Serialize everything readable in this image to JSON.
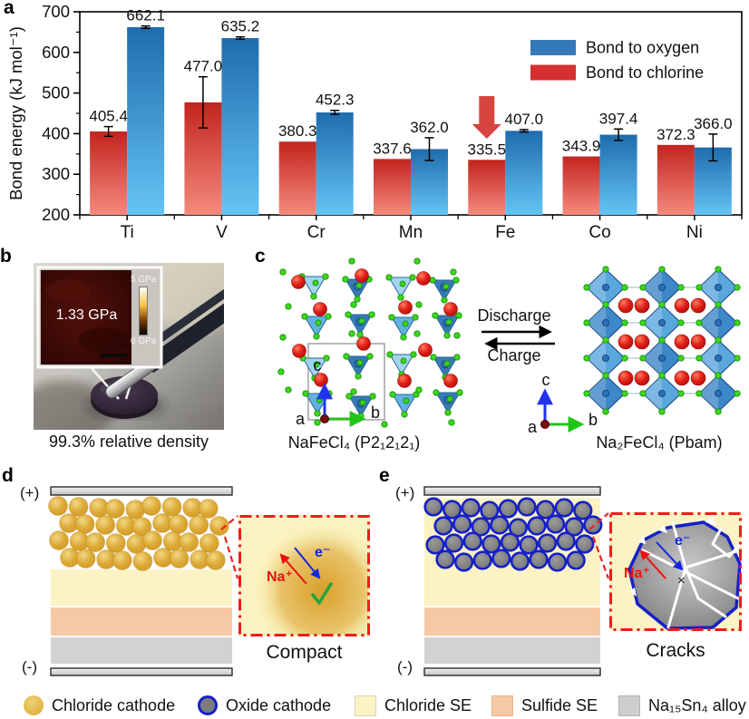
{
  "figure": {
    "panel_labels": {
      "a": "a",
      "b": "b",
      "c": "c",
      "d": "d",
      "e": "e"
    }
  },
  "chart_data": {
    "type": "bar",
    "title": "",
    "categories": [
      "Ti",
      "V",
      "Cr",
      "Mn",
      "Fe",
      "Co",
      "Ni"
    ],
    "series": [
      {
        "name": "Bond to chlorine",
        "values": [
          405.4,
          477.0,
          380.3,
          337.6,
          335.5,
          343.9,
          372.3
        ],
        "errors": [
          12,
          63,
          0,
          0,
          0,
          0,
          0
        ],
        "bar_top": "#c2241e",
        "bar_bottom": "#f58a7d",
        "legend_color": "#d62f2f"
      },
      {
        "name": "Bond to oxygen",
        "values": [
          662.1,
          635.2,
          452.3,
          362.0,
          407.0,
          397.4,
          366.0
        ],
        "errors": [
          3,
          3,
          5,
          28,
          3,
          14,
          33
        ],
        "bar_top": "#1f6cad",
        "bar_bottom": "#64c4f4",
        "legend_color": "#3579b8"
      }
    ],
    "legend": [
      {
        "label": "Bond to oxygen",
        "color": "#3579b8"
      },
      {
        "label": "Bond to chlorine",
        "color": "#d62f2f"
      }
    ],
    "xlabel": "",
    "ylabel": "Bond energy (kJ mol⁻¹)",
    "ylim": [
      200,
      700
    ],
    "yticks": [
      200,
      300,
      400,
      500,
      600,
      700
    ],
    "grid": false,
    "legend_position": "upper right",
    "annotation": {
      "shape": "down-arrow",
      "category": "Fe",
      "series": "Bond to chlorine",
      "color": "#d6453f"
    }
  },
  "panel_b": {
    "inset_value": "1.33 GPa",
    "scale_max": "5 GPa",
    "scale_min": "0 GPa",
    "caption": "99.3% relative density"
  },
  "panel_c": {
    "discharge": "Discharge",
    "charge": "Charge",
    "left_formula": "NaFeCl₄ (P2₁2₁2₁)",
    "right_formula": "Na₂FeCl₄ (Pbam)",
    "axes": {
      "a": "a",
      "b": "b",
      "c": "c"
    }
  },
  "panel_d": {
    "plus": "(+)",
    "minus": "(-)",
    "na_ion": "Na⁺",
    "electron": "e⁻",
    "caption": "Compact"
  },
  "panel_e": {
    "plus": "(+)",
    "minus": "(-)",
    "na_ion": "Na⁺",
    "electron": "e⁻",
    "cross": "×",
    "caption": "Cracks"
  },
  "legend": {
    "items": [
      {
        "icon": "chloride-cathode-icon",
        "label": "Chloride cathode"
      },
      {
        "icon": "oxide-cathode-icon",
        "label": "Oxide cathode"
      },
      {
        "icon": "chloride-se-icon",
        "label": "Chloride SE"
      },
      {
        "icon": "sulfide-se-icon",
        "label": "Sulfide SE"
      },
      {
        "icon": "na15sn4-alloy-icon",
        "label": "Na₁₅Sn₄ alloy"
      }
    ]
  },
  "colors": {
    "chloride_se": "#fbf3c3",
    "sulfide_se": "#f6c9a4",
    "alloy": "#d2d2d2",
    "oxide_ring": "#1520c8",
    "gold": "#dba832",
    "inset_border": "#ee1c1c",
    "na_arrow": "#ee1111",
    "e_arrow": "#1526e0"
  }
}
